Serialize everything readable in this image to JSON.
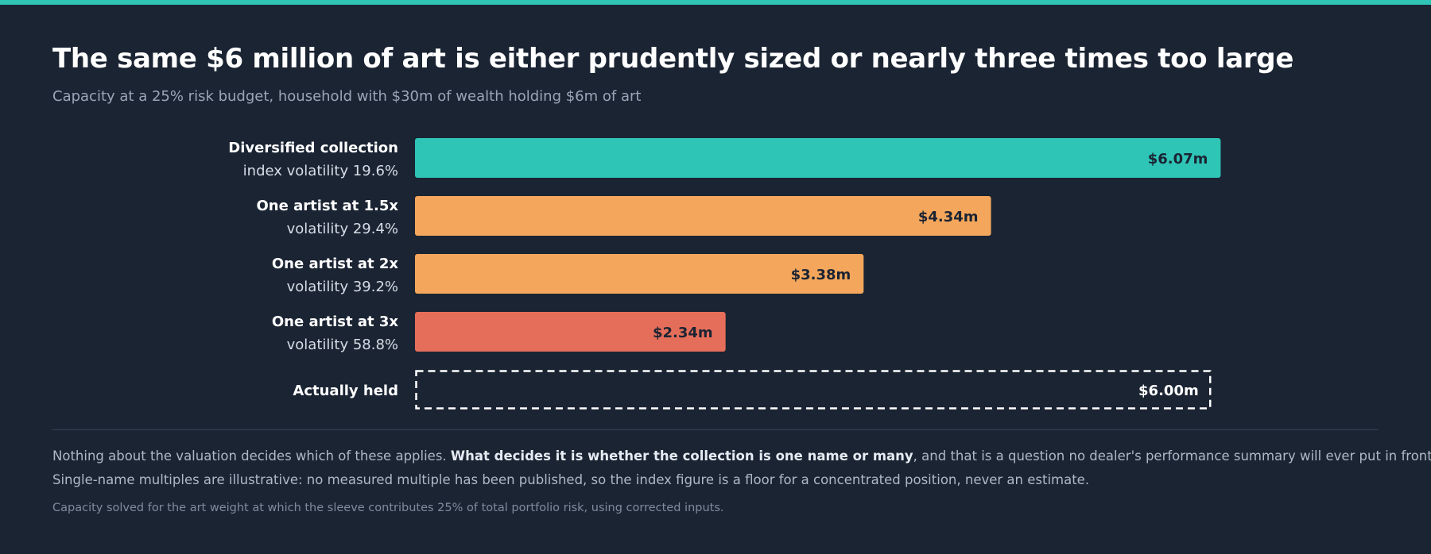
{
  "header": {
    "title": "The same $6 million of art is either prudently sized or nearly three times too large",
    "subtitle": "Capacity at a 25% risk budget, household with $30m of wealth holding $6m of art"
  },
  "chart_data": {
    "type": "bar",
    "orientation": "horizontal",
    "unit": "$m",
    "xlim": [
      0,
      6.9
    ],
    "grid": false,
    "legend": "none",
    "categories": [
      {
        "label": "Diversified collection",
        "sublabel": "index volatility 19.6%",
        "value": 6.07,
        "value_label": "$6.07m",
        "color": "#2ec4b6",
        "style": "solid"
      },
      {
        "label": "One artist at 1.5x",
        "sublabel": "volatility 29.4%",
        "value": 4.34,
        "value_label": "$4.34m",
        "color": "#f4a75c",
        "style": "solid"
      },
      {
        "label": "One artist at 2x",
        "sublabel": "volatility 39.2%",
        "value": 3.38,
        "value_label": "$3.38m",
        "color": "#f4a75c",
        "style": "solid"
      },
      {
        "label": "One artist at 3x",
        "sublabel": "volatility 58.8%",
        "value": 2.34,
        "value_label": "$2.34m",
        "color": "#e56e5a",
        "style": "solid"
      },
      {
        "label": "Actually held",
        "sublabel": "",
        "value": 6.0,
        "value_label": "$6.00m",
        "color": "#ffffff",
        "style": "dashed-outline"
      }
    ]
  },
  "notes": {
    "line1_start": "Nothing about the valuation decides which of these applies. ",
    "line1_bold": "What decides it is whether the collection is one name or many",
    "line1_end": ", and that is a question no dealer's performance summary will ever put in front of you.",
    "line2": "Single-name multiples are illustrative: no measured multiple has been published, so the index figure is a floor for a concentrated position, never an estimate.",
    "footnote": "Capacity solved for the art weight at which the sleeve contributes 25% of total portfolio risk, using corrected inputs."
  },
  "colors": {
    "background": "#1b2433",
    "accent": "#2ec4b6",
    "orange": "#f4a75c",
    "red": "#e56e5a"
  }
}
